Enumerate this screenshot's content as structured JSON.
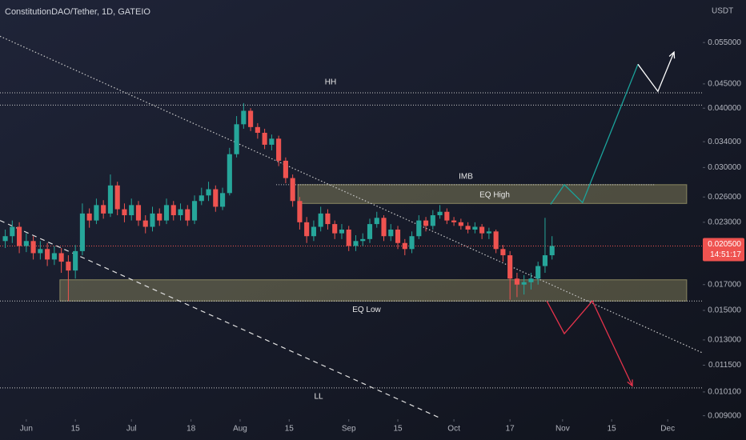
{
  "chart_data": {
    "type": "candlestick",
    "title": "ConstitutionDAO/Tether, 1D, GATEIO",
    "currency": "USDT",
    "up_color": "#26a69a",
    "down_color": "#ef5350",
    "x": [
      -6,
      -4,
      -2,
      0,
      2,
      4,
      6,
      8,
      10,
      12,
      14,
      16,
      18,
      20,
      22,
      24,
      26,
      28,
      30,
      32,
      34,
      36,
      38,
      40,
      42,
      44,
      46,
      48,
      50,
      52,
      54,
      56,
      58,
      60,
      62,
      64,
      66,
      68,
      70,
      72,
      74,
      76,
      78,
      80,
      82,
      84,
      86,
      88,
      90,
      92,
      94,
      96,
      98,
      100,
      102,
      104,
      106,
      108,
      110,
      112,
      114,
      116,
      118,
      120,
      122,
      124,
      126,
      128,
      130,
      132,
      134,
      136,
      138,
      140,
      142,
      144,
      146,
      148,
      150
    ],
    "open": [
      0.021,
      0.0215,
      0.0225,
      0.0205,
      0.021,
      0.0198,
      0.0202,
      0.0192,
      0.0198,
      0.019,
      0.0182,
      0.02,
      0.024,
      0.0232,
      0.025,
      0.024,
      0.0275,
      0.0245,
      0.0238,
      0.025,
      0.0232,
      0.0225,
      0.024,
      0.0232,
      0.025,
      0.0238,
      0.0245,
      0.0232,
      0.0255,
      0.0262,
      0.027,
      0.0248,
      0.0265,
      0.032,
      0.037,
      0.0395,
      0.0365,
      0.0355,
      0.0335,
      0.0345,
      0.031,
      0.0285,
      0.0255,
      0.023,
      0.0215,
      0.0225,
      0.024,
      0.0228,
      0.0218,
      0.0222,
      0.0205,
      0.021,
      0.0212,
      0.0228,
      0.0235,
      0.0215,
      0.0222,
      0.0208,
      0.0202,
      0.0215,
      0.0232,
      0.0226,
      0.0238,
      0.0242,
      0.0232,
      0.023,
      0.0226,
      0.0222,
      0.0225,
      0.0218,
      0.022,
      0.0202,
      0.0196,
      0.0175,
      0.017,
      0.0172,
      0.0175,
      0.0186,
      0.0196
    ],
    "high": [
      0.0222,
      0.0232,
      0.023,
      0.0218,
      0.0215,
      0.021,
      0.0208,
      0.0205,
      0.0203,
      0.0196,
      0.0206,
      0.0252,
      0.0246,
      0.0258,
      0.0256,
      0.029,
      0.028,
      0.0252,
      0.0258,
      0.0255,
      0.0238,
      0.0248,
      0.0246,
      0.0258,
      0.0255,
      0.0252,
      0.025,
      0.0262,
      0.0272,
      0.028,
      0.0275,
      0.0272,
      0.033,
      0.0385,
      0.041,
      0.04,
      0.0372,
      0.0362,
      0.0352,
      0.035,
      0.0315,
      0.029,
      0.026,
      0.0236,
      0.0232,
      0.0248,
      0.0245,
      0.0232,
      0.0228,
      0.0226,
      0.0216,
      0.0218,
      0.0234,
      0.0242,
      0.0238,
      0.0228,
      0.0226,
      0.0212,
      0.022,
      0.0238,
      0.0236,
      0.0244,
      0.025,
      0.0246,
      0.0236,
      0.0234,
      0.023,
      0.023,
      0.0228,
      0.0224,
      0.0222,
      0.0206,
      0.02,
      0.018,
      0.0178,
      0.018,
      0.019,
      0.0235,
      0.0215
    ],
    "low": [
      0.0203,
      0.0208,
      0.0198,
      0.0199,
      0.0192,
      0.0192,
      0.0186,
      0.0187,
      0.018,
      0.0157,
      0.0175,
      0.0196,
      0.0224,
      0.0228,
      0.0234,
      0.0236,
      0.0238,
      0.023,
      0.0232,
      0.0226,
      0.0218,
      0.022,
      0.0226,
      0.0228,
      0.0232,
      0.0232,
      0.0226,
      0.0228,
      0.025,
      0.0255,
      0.0242,
      0.0244,
      0.0262,
      0.0315,
      0.0362,
      0.0358,
      0.0345,
      0.0328,
      0.0326,
      0.0302,
      0.0278,
      0.0248,
      0.0222,
      0.0208,
      0.021,
      0.022,
      0.0222,
      0.0212,
      0.0212,
      0.02,
      0.02,
      0.0205,
      0.0208,
      0.0224,
      0.021,
      0.021,
      0.0202,
      0.0196,
      0.0198,
      0.0212,
      0.022,
      0.0222,
      0.0234,
      0.0228,
      0.0226,
      0.0222,
      0.0218,
      0.0218,
      0.0212,
      0.0212,
      0.0198,
      0.019,
      0.0158,
      0.016,
      0.0162,
      0.0166,
      0.017,
      0.018,
      0.0192
    ],
    "close": [
      0.0215,
      0.0225,
      0.0205,
      0.021,
      0.0198,
      0.0202,
      0.0192,
      0.0198,
      0.019,
      0.0182,
      0.02,
      0.024,
      0.0232,
      0.025,
      0.024,
      0.0275,
      0.0245,
      0.0238,
      0.025,
      0.0232,
      0.0225,
      0.024,
      0.0232,
      0.025,
      0.0238,
      0.0245,
      0.0232,
      0.0255,
      0.0262,
      0.027,
      0.0248,
      0.0265,
      0.032,
      0.037,
      0.0395,
      0.0365,
      0.0355,
      0.0335,
      0.0345,
      0.031,
      0.0285,
      0.0255,
      0.023,
      0.0215,
      0.0225,
      0.024,
      0.0228,
      0.0218,
      0.0222,
      0.0205,
      0.021,
      0.0212,
      0.0228,
      0.0235,
      0.0215,
      0.0222,
      0.0208,
      0.0202,
      0.0215,
      0.0232,
      0.0226,
      0.0238,
      0.0242,
      0.0232,
      0.023,
      0.0226,
      0.0222,
      0.0225,
      0.0218,
      0.022,
      0.0202,
      0.0196,
      0.0175,
      0.017,
      0.0172,
      0.0175,
      0.0186,
      0.0196,
      0.0205
    ],
    "xlim": [
      -7.5,
      193
    ],
    "xticks": [
      {
        "value": 0,
        "label": "Jun"
      },
      {
        "value": 14,
        "label": "15"
      },
      {
        "value": 30,
        "label": "Jul"
      },
      {
        "value": 47,
        "label": "18"
      },
      {
        "value": 61,
        "label": "Aug"
      },
      {
        "value": 75,
        "label": "15"
      },
      {
        "value": 92,
        "label": "Sep"
      },
      {
        "value": 106,
        "label": "15"
      },
      {
        "value": 122,
        "label": "Oct"
      },
      {
        "value": 138,
        "label": "17"
      },
      {
        "value": 153,
        "label": "Nov"
      },
      {
        "value": 167,
        "label": "15"
      },
      {
        "value": 183,
        "label": "Dec"
      }
    ],
    "ylim": [
      0.008,
      0.0676
    ],
    "yscale": "log",
    "yticks": [
      {
        "value": 0.055,
        "label": "0.055000"
      },
      {
        "value": 0.045,
        "label": "0.045000"
      },
      {
        "value": 0.04,
        "label": "0.040000"
      },
      {
        "value": 0.034,
        "label": "0.034000"
      },
      {
        "value": 0.03,
        "label": "0.030000"
      },
      {
        "value": 0.026,
        "label": "0.026000"
      },
      {
        "value": 0.023,
        "label": "0.023000"
      },
      {
        "value": 0.017,
        "label": "0.017000"
      },
      {
        "value": 0.015,
        "label": "0.015000"
      },
      {
        "value": 0.013,
        "label": "0.013000"
      },
      {
        "value": 0.0115,
        "label": "0.011500"
      },
      {
        "value": 0.0101,
        "label": "0.010100"
      },
      {
        "value": 0.009,
        "label": "0.009000"
      }
    ],
    "last_price": {
      "value": 0.0205,
      "label": "0.020500"
    },
    "countdown": "14:51:17",
    "levels": [
      {
        "label": "HH",
        "value": 0.0431
      },
      {
        "value": 0.0406
      },
      {
        "label": "IMB",
        "value": 0.0276,
        "start": 71.3,
        "end": 179.3
      },
      {
        "value": 0.0157
      },
      {
        "label": "LL",
        "value": 0.0103
      }
    ],
    "zones": [
      {
        "label": "EQ High",
        "top": 0.0276,
        "bottom": 0.0252,
        "start": 77.5,
        "end": 188.4
      },
      {
        "label": "EQ Low",
        "top": 0.0174,
        "bottom": 0.0157,
        "start": 9.6,
        "end": 188.4
      }
    ],
    "trendlines": [
      {
        "x": [
          -7.5,
          193
        ],
        "y": [
          0.0567,
          0.0122
        ],
        "style": "dotted",
        "color": "#c8c8c8"
      },
      {
        "x": [
          -7.5,
          118.5
        ],
        "y": [
          0.0232,
          0.00887
        ],
        "style": "dashed",
        "color": "#e0e0e0"
      }
    ],
    "projections": [
      {
        "x": [
          149.6,
          153.5,
          158.7,
          174.5
        ],
        "y": [
          0.0251,
          0.0276,
          0.0253,
          0.0495
        ],
        "color": "#1aa39b"
      },
      {
        "x": [
          174.5,
          180.2,
          184.8
        ],
        "y": [
          0.0495,
          0.0434,
          0.0525
        ],
        "color": "#ffffff"
      },
      {
        "x": [
          148.5,
          153.5,
          161.5,
          172.9
        ],
        "y": [
          0.0157,
          0.0134,
          0.0157,
          0.0104
        ],
        "color": "#e5334b"
      }
    ]
  }
}
